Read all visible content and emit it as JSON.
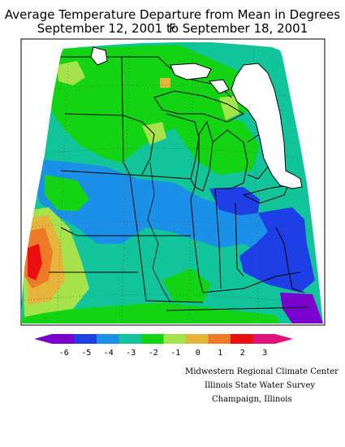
{
  "title": {
    "line1": "Average Temperature Departure from Mean in Degrees F",
    "line2": "September 12, 2001  to September 18, 2001"
  },
  "legend": {
    "labels": [
      "-6",
      "-5",
      "-4",
      "-3",
      "-2",
      "-1",
      "0",
      "1",
      "2",
      "3"
    ],
    "colors": [
      "#7a00d0",
      "#1f3fe6",
      "#1a90e8",
      "#12c49a",
      "#12d412",
      "#a6e24a",
      "#e6b43a",
      "#ee7a28",
      "#ea1010",
      "#e0127a"
    ]
  },
  "credits": {
    "line1": "Midwestern Regional Climate Center",
    "line2": "Illinois State Water Survey",
    "line3": "Champaign, Illinois"
  },
  "map_colors": {
    "base": "#12c49a",
    "cool": "#1a90e8",
    "cold": "#1f3fe6",
    "coldest": "#7a00d0",
    "green": "#12d412",
    "lightgreen": "#a6e24a",
    "gold": "#e6b43a",
    "orange": "#ee7a28",
    "red": "#ea1010",
    "magenta": "#e0127a"
  }
}
